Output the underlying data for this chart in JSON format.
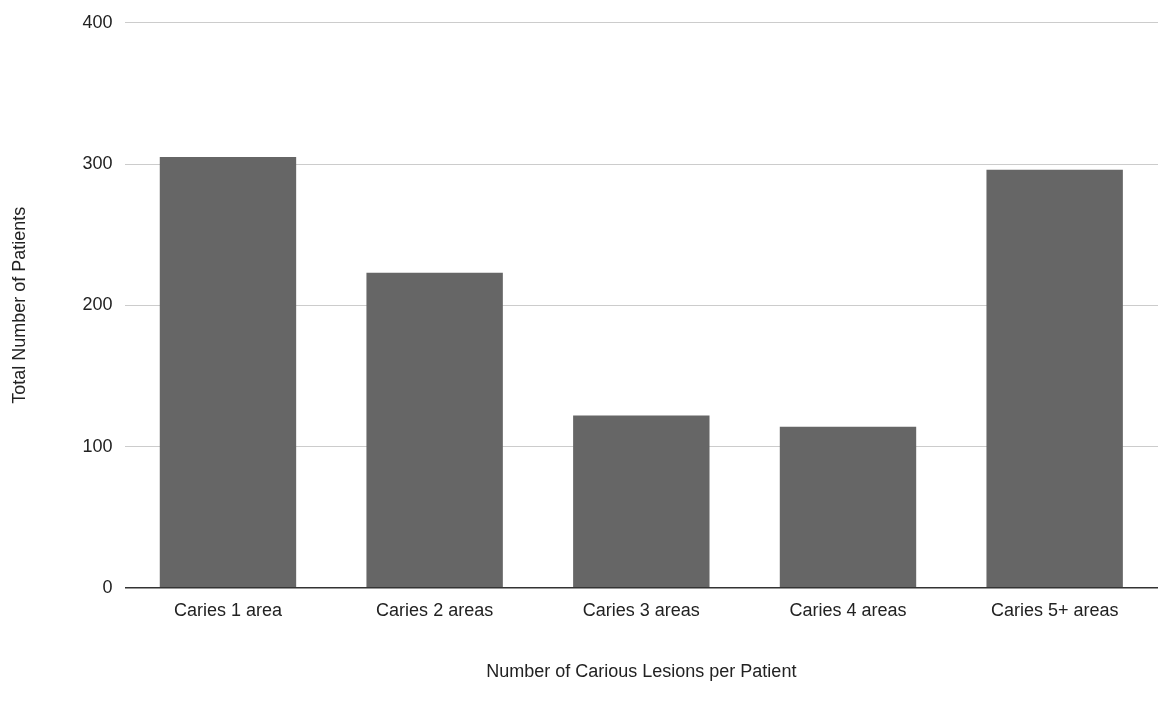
{
  "chart_data": {
    "type": "bar",
    "xlabel": "Number of Carious Lesions per Patient",
    "ylabel": "Total Number of Patients",
    "categories": [
      "Caries 1 area",
      "Caries 2 areas",
      "Caries 3 areas",
      "Caries 4 areas",
      "Caries 5+ areas"
    ],
    "values": [
      305,
      223,
      122,
      114,
      296
    ],
    "color": "#666666",
    "ylim": [
      0,
      400
    ],
    "yticks": [
      0,
      100,
      200,
      300,
      400
    ],
    "grid": "y",
    "legend": false
  }
}
